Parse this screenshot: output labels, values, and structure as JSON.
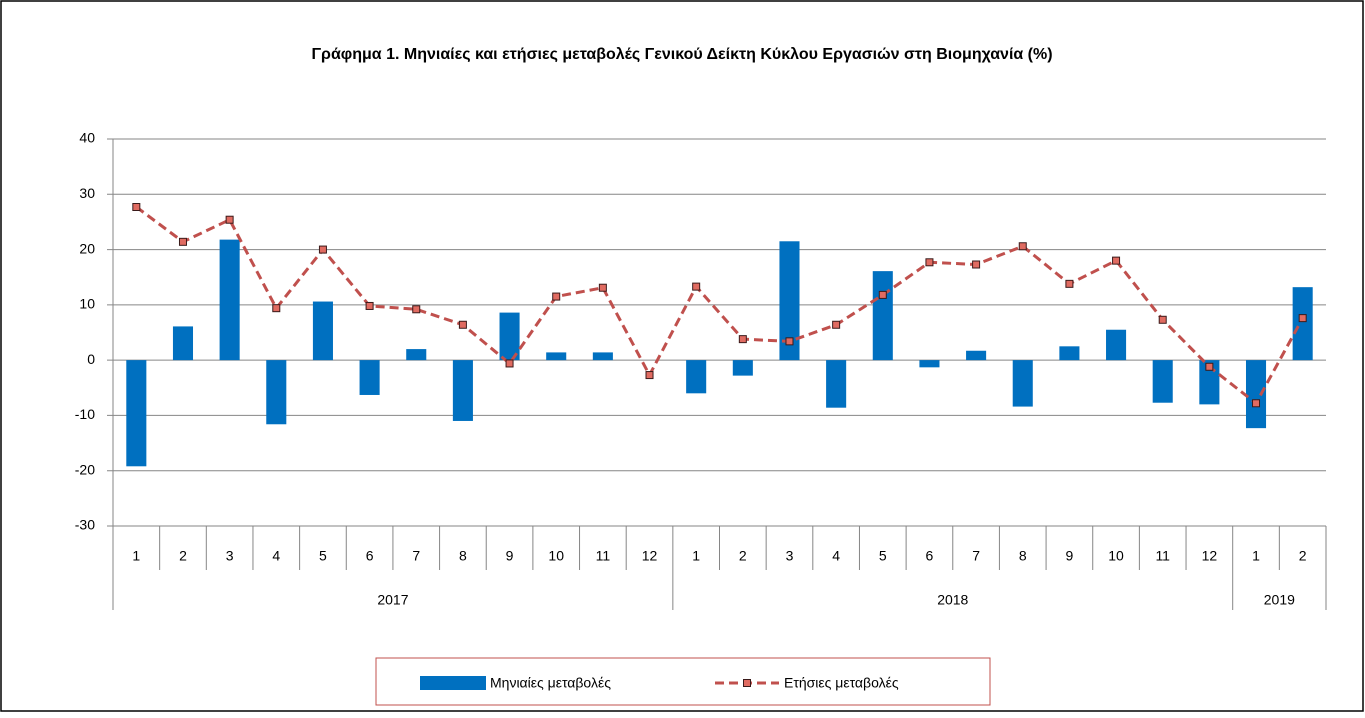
{
  "chart_data": {
    "type": "bar-line",
    "title": "Γράφημα 1. Μηνιαίες και ετήσιες μεταβολές  Γενικού Δείκτη Κύκλου Εργασιών στη Βιομηχανία (%)",
    "categories": [
      "1",
      "2",
      "3",
      "4",
      "5",
      "6",
      "7",
      "8",
      "9",
      "10",
      "11",
      "12",
      "1",
      "2",
      "3",
      "4",
      "5",
      "6",
      "7",
      "8",
      "9",
      "10",
      "11",
      "12",
      "1",
      "2"
    ],
    "years": [
      "2017",
      "2017",
      "2017",
      "2017",
      "2017",
      "2017",
      "2017",
      "2017",
      "2017",
      "2017",
      "2017",
      "2017",
      "2018",
      "2018",
      "2018",
      "2018",
      "2018",
      "2018",
      "2018",
      "2018",
      "2018",
      "2018",
      "2018",
      "2018",
      "2019",
      "2019"
    ],
    "series": [
      {
        "name": "Μηνιαίες μεταβολές",
        "type": "bar",
        "color": "#0070c0",
        "values": [
          -19.2,
          6.1,
          21.8,
          -11.6,
          10.6,
          -6.3,
          2.0,
          -11.0,
          8.6,
          1.4,
          1.4,
          0,
          -6.0,
          -2.8,
          21.5,
          -8.6,
          16.1,
          -1.3,
          1.7,
          -8.4,
          2.5,
          5.5,
          -7.7,
          -8.0,
          -12.3,
          13.2
        ]
      },
      {
        "name": "Ετήσιες μεταβολές",
        "type": "line",
        "color": "#c0504d",
        "values": [
          27.7,
          21.4,
          25.4,
          9.4,
          20.0,
          9.8,
          9.2,
          6.4,
          -0.6,
          11.5,
          13.1,
          -2.7,
          13.3,
          3.8,
          3.4,
          6.4,
          11.8,
          17.7,
          17.3,
          20.6,
          13.8,
          18.0,
          7.3,
          -1.2,
          -7.8,
          7.6
        ]
      }
    ],
    "ylim": [
      -30,
      40
    ],
    "yticks": [
      -30,
      -20,
      -10,
      0,
      10,
      20,
      30,
      40
    ],
    "grid": true,
    "legend": "bottom"
  }
}
